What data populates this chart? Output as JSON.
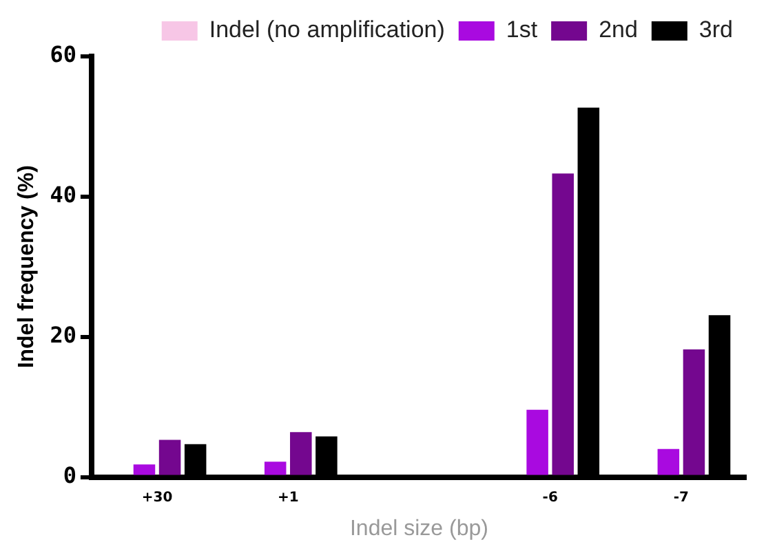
{
  "chart_data": {
    "type": "bar",
    "xlabel": "Indel size (bp)",
    "ylabel": "Indel frequency (%)",
    "categories": [
      "+30",
      "+1",
      null,
      "-6",
      "-7"
    ],
    "series": [
      {
        "name": "Indel (no amplification)",
        "color": "#f7c6e6",
        "values": [
          null,
          null,
          null,
          null,
          null
        ]
      },
      {
        "name": "1st",
        "color": "#a90ae0",
        "values": [
          1.8,
          2.2,
          null,
          9.6,
          4.0
        ]
      },
      {
        "name": "2nd",
        "color": "#74078f",
        "values": [
          5.3,
          6.4,
          null,
          43.3,
          18.2
        ]
      },
      {
        "name": "3rd",
        "color": "#000000",
        "values": [
          4.7,
          5.8,
          null,
          52.7,
          23.1
        ]
      }
    ],
    "ylim": [
      0,
      60
    ],
    "yticks": [
      0,
      20,
      40,
      60
    ],
    "grid": false,
    "legend": "top right"
  }
}
